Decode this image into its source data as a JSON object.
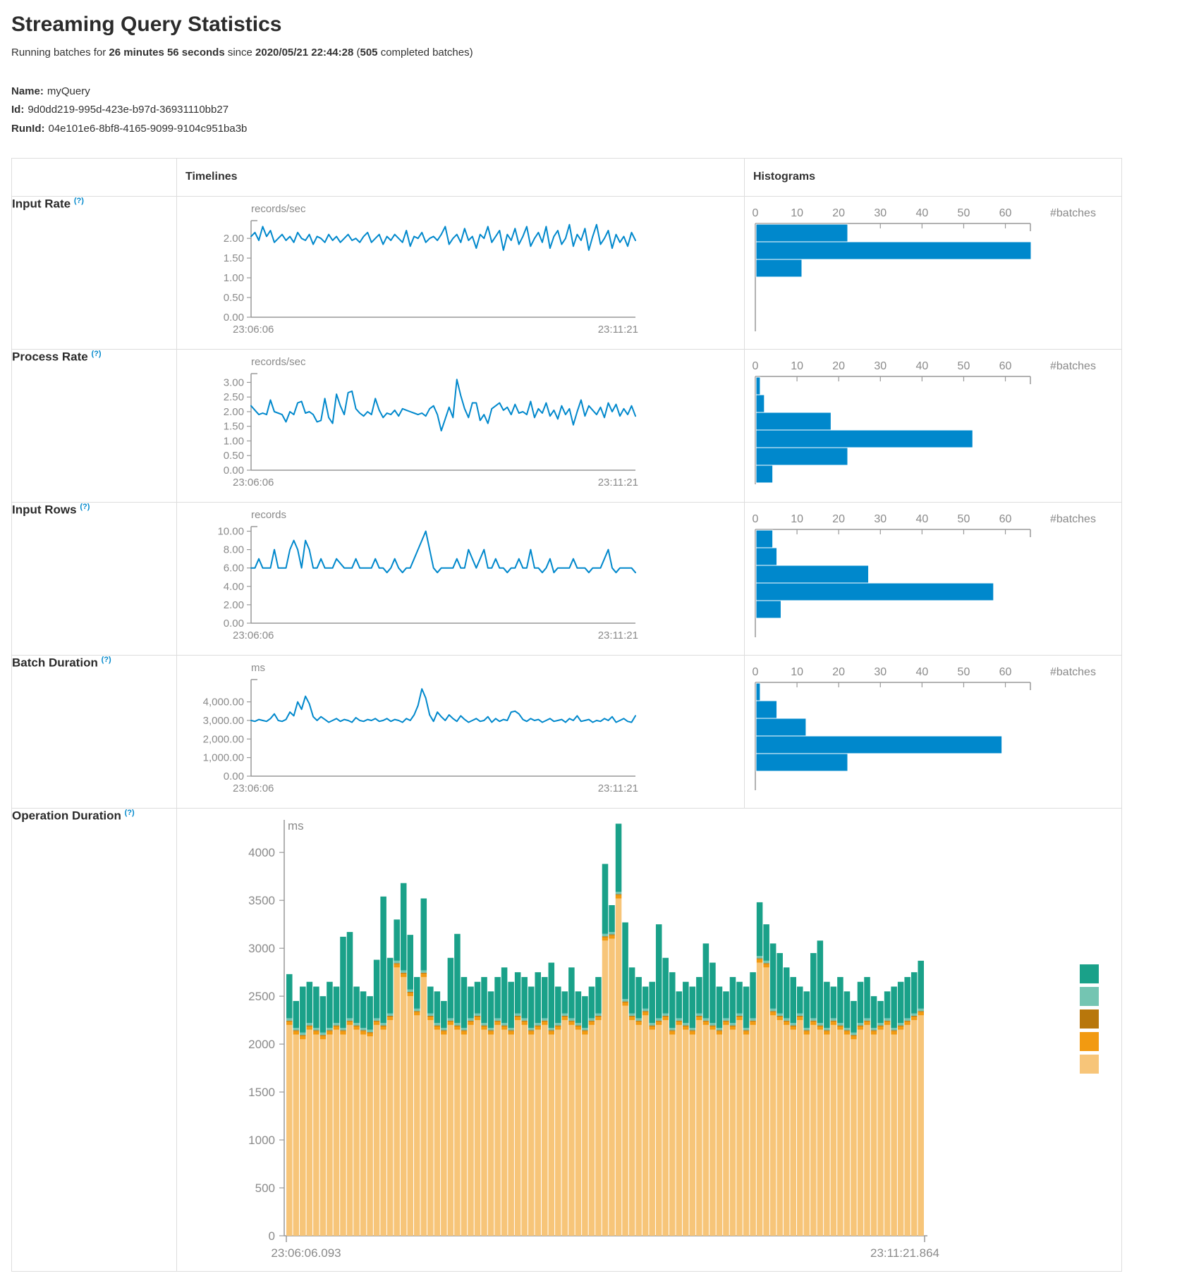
{
  "page": {
    "title": "Streaming Query Statistics",
    "summary": {
      "prefix": "Running batches for ",
      "duration": "26 minutes 56 seconds",
      "since_word": " since ",
      "start_time": "2020/05/21 22:44:28",
      "open_paren": " (",
      "batch_count": "505",
      "suffix": " completed batches)"
    },
    "meta": {
      "name_label": "Name:",
      "name": "myQuery",
      "id_label": "Id:",
      "id": "9d0dd219-995d-423e-b97d-36931110bb27",
      "runid_label": "RunId:",
      "runid": "04e101e6-8bf8-4165-9099-9104c951ba3b"
    }
  },
  "table": {
    "timelines_header": "Timelines",
    "histograms_header": "Histograms",
    "rows": [
      {
        "label": "Input Rate",
        "help": "(?)"
      },
      {
        "label": "Process Rate",
        "help": "(?)"
      },
      {
        "label": "Input Rows",
        "help": "(?)"
      },
      {
        "label": "Batch Duration",
        "help": "(?)"
      },
      {
        "label": "Operation Duration",
        "help": "(?)"
      }
    ]
  },
  "colors": {
    "line_blue": "#0088cc",
    "axis_gray": "#999999",
    "label_gray": "#8a8a8a",
    "teal": "#1aa189",
    "light_teal": "#74c5b2",
    "amber": "#b8770c",
    "orange": "#f29a11",
    "tan": "#f7c579"
  },
  "chart_data": [
    {
      "type": "line",
      "mount": "tl-input-rate",
      "title": "Input Rate timeline",
      "unit": "records/sec",
      "color": "#0088cc",
      "x_start_label": "23:06:06",
      "x_end_label": "23:11:21",
      "ymax": 2.45,
      "yticks": [
        0,
        0.5,
        1,
        1.5,
        2
      ],
      "ytick_labels": [
        "0.00",
        "0.50",
        "1.00",
        "1.50",
        "2.00"
      ],
      "values": [
        2.05,
        2.15,
        1.95,
        2.3,
        2.05,
        2.2,
        1.9,
        2.0,
        2.1,
        1.95,
        2.05,
        1.9,
        2.15,
        2.0,
        1.95,
        2.1,
        1.85,
        2.05,
        2.0,
        1.9,
        2.1,
        1.95,
        2.05,
        1.9,
        2.0,
        2.1,
        1.95,
        2.0,
        1.9,
        2.05,
        2.15,
        1.9,
        2.0,
        2.1,
        1.85,
        2.05,
        1.95,
        2.1,
        2.0,
        1.9,
        2.2,
        1.8,
        2.05,
        2.0,
        2.15,
        1.9,
        2.0,
        2.05,
        1.95,
        2.1,
        2.3,
        1.85,
        2.0,
        2.1,
        1.9,
        2.25,
        1.95,
        2.05,
        1.75,
        2.1,
        2.0,
        2.3,
        1.9,
        2.05,
        2.2,
        1.7,
        2.1,
        1.95,
        2.25,
        1.85,
        2.05,
        2.3,
        1.8,
        2.0,
        2.15,
        1.9,
        2.3,
        1.75,
        2.05,
        2.2,
        1.85,
        2.0,
        2.35,
        1.8,
        2.1,
        1.95,
        2.25,
        1.7,
        2.05,
        2.35,
        1.85,
        2.0,
        2.2,
        1.75,
        2.1,
        1.9,
        2.05,
        1.8,
        2.15,
        1.95
      ]
    },
    {
      "type": "hbar",
      "mount": "hist-input-rate",
      "title": "Input Rate histogram",
      "xlabel": "#batches",
      "color": "#0088cc",
      "xticks": [
        0,
        10,
        20,
        30,
        40,
        50,
        60
      ],
      "xmax": 66,
      "values": [
        22,
        66,
        11
      ]
    },
    {
      "type": "line",
      "mount": "tl-process-rate",
      "title": "Process Rate timeline",
      "unit": "records/sec",
      "color": "#0088cc",
      "x_start_label": "23:06:06",
      "x_end_label": "23:11:21",
      "ymax": 3.3,
      "yticks": [
        0,
        0.5,
        1,
        1.5,
        2,
        2.5,
        3
      ],
      "ytick_labels": [
        "0.00",
        "0.50",
        "1.00",
        "1.50",
        "2.00",
        "2.50",
        "3.00"
      ],
      "values": [
        2.2,
        2.05,
        1.9,
        1.95,
        1.9,
        2.4,
        2.0,
        1.95,
        1.9,
        1.65,
        2.0,
        1.9,
        2.3,
        2.35,
        1.95,
        2.0,
        1.9,
        1.65,
        1.7,
        2.45,
        1.8,
        1.6,
        2.6,
        2.2,
        1.9,
        2.65,
        2.7,
        2.1,
        1.95,
        1.85,
        2.0,
        1.9,
        2.45,
        2.05,
        1.8,
        1.95,
        1.9,
        2.05,
        1.85,
        2.1,
        2.05,
        2.0,
        1.95,
        1.9,
        1.95,
        1.85,
        2.1,
        2.2,
        1.9,
        1.35,
        1.75,
        2.15,
        1.8,
        3.1,
        2.55,
        2.1,
        1.8,
        2.3,
        2.3,
        1.7,
        1.9,
        1.6,
        2.1,
        2.2,
        2.3,
        2.05,
        2.15,
        1.9,
        2.25,
        1.95,
        2.0,
        1.9,
        2.35,
        1.8,
        2.1,
        1.95,
        2.3,
        1.85,
        2.05,
        1.75,
        2.2,
        1.9,
        2.1,
        1.55,
        2.0,
        2.4,
        1.85,
        2.2,
        2.05,
        1.9,
        2.15,
        1.8,
        2.3,
        2.0,
        2.25,
        1.85,
        2.1,
        1.9,
        2.2,
        1.85
      ]
    },
    {
      "type": "hbar",
      "mount": "hist-process-rate",
      "title": "Process Rate histogram",
      "xlabel": "#batches",
      "color": "#0088cc",
      "xticks": [
        0,
        10,
        20,
        30,
        40,
        50,
        60
      ],
      "xmax": 66,
      "values": [
        1,
        2,
        18,
        52,
        22,
        4
      ]
    },
    {
      "type": "line",
      "mount": "tl-input-rows",
      "title": "Input Rows timeline",
      "unit": "records",
      "color": "#0088cc",
      "x_start_label": "23:06:06",
      "x_end_label": "23:11:21",
      "ymax": 10.5,
      "yticks": [
        0,
        2,
        4,
        6,
        8,
        10
      ],
      "ytick_labels": [
        "0.00",
        "2.00",
        "4.00",
        "6.00",
        "8.00",
        "10.00"
      ],
      "values": [
        6,
        6,
        7,
        6,
        6,
        6,
        8,
        6,
        6,
        6,
        8,
        9,
        8,
        6,
        9,
        8,
        6,
        6,
        7,
        6,
        6,
        6,
        7,
        6.5,
        6,
        6,
        6,
        7,
        6,
        6,
        6,
        6,
        7,
        6,
        6,
        5.5,
        6,
        7,
        6,
        5.5,
        6,
        6,
        7,
        8,
        9,
        10,
        8,
        6,
        5.5,
        6,
        6,
        6,
        6,
        7,
        6,
        6,
        8,
        7,
        6,
        7,
        8,
        6,
        6,
        7,
        6,
        6,
        5.5,
        6,
        6,
        7,
        6,
        6,
        8,
        6,
        6,
        5.5,
        6,
        7,
        5.5,
        6,
        6,
        6,
        6,
        7,
        6,
        6,
        6,
        5.5,
        6,
        6,
        6,
        7,
        8,
        6,
        5.5,
        6,
        6,
        6,
        6,
        5.5
      ]
    },
    {
      "type": "hbar",
      "mount": "hist-input-rows",
      "title": "Input Rows histogram",
      "xlabel": "#batches",
      "color": "#0088cc",
      "xticks": [
        0,
        10,
        20,
        30,
        40,
        50,
        60
      ],
      "xmax": 66,
      "values": [
        4,
        5,
        27,
        57,
        6
      ]
    },
    {
      "type": "line",
      "mount": "tl-batch-duration",
      "title": "Batch Duration timeline",
      "unit": "ms",
      "color": "#0088cc",
      "x_start_label": "23:06:06",
      "x_end_label": "23:11:21",
      "ymax": 5200,
      "yticks": [
        0,
        1000,
        2000,
        3000,
        4000
      ],
      "ytick_labels": [
        "0.00",
        "1,000.00",
        "2,000.00",
        "3,000.00",
        "4,000.00"
      ],
      "values": [
        3000,
        2950,
        3050,
        3000,
        2950,
        3100,
        3350,
        3000,
        2950,
        3050,
        3450,
        3250,
        4000,
        3600,
        4300,
        3900,
        3200,
        3000,
        3200,
        3050,
        2900,
        3000,
        3100,
        2950,
        3050,
        3000,
        2900,
        3150,
        3000,
        2950,
        3050,
        3000,
        3100,
        2950,
        3000,
        3100,
        2950,
        3050,
        3000,
        2900,
        3100,
        3000,
        3300,
        3800,
        4700,
        4200,
        3300,
        2950,
        3450,
        3200,
        3000,
        3300,
        3100,
        2950,
        3250,
        3050,
        2900,
        3000,
        3100,
        2950,
        3000,
        3200,
        2900,
        3100,
        2950,
        3050,
        3000,
        3450,
        3500,
        3350,
        3050,
        2950,
        3100,
        3000,
        3050,
        2900,
        3000,
        3100,
        2950,
        3000,
        3050,
        2900,
        3100,
        3000,
        3250,
        2950,
        3000,
        3050,
        2900,
        3000,
        2950,
        3100,
        3000,
        3200,
        2900,
        3000,
        3100,
        2950,
        2900,
        3250
      ]
    },
    {
      "type": "hbar",
      "mount": "hist-batch-duration",
      "title": "Batch Duration histogram",
      "xlabel": "#batches",
      "color": "#0088cc",
      "xticks": [
        0,
        10,
        20,
        30,
        40,
        50,
        60
      ],
      "xmax": 66,
      "values": [
        1,
        5,
        12,
        59,
        22
      ]
    },
    {
      "type": "stacked",
      "mount": "op-duration",
      "title": "Operation Duration",
      "unit": "ms",
      "x_start_label": "23:06:06.093",
      "x_end_label": "23:11:21.864",
      "ymax": 4340,
      "yticks": [
        0,
        500,
        1000,
        1500,
        2000,
        2500,
        3000,
        3500,
        4000
      ],
      "ytick_labels": [
        "0",
        "500",
        "1000",
        "1500",
        "2000",
        "2500",
        "3000",
        "3500",
        "4000"
      ],
      "colors": {
        "teal": "#1aa189",
        "light_teal": "#74c5b2",
        "amber": "#b8770c",
        "orange": "#f29a11",
        "tan": "#f7c579"
      },
      "legend_order": [
        "teal",
        "light_teal",
        "amber",
        "orange",
        "tan"
      ],
      "sliver_orange": 35,
      "sliver_amber": 10,
      "sliver_lightteal": 25,
      "tan_values": [
        2200,
        2100,
        2050,
        2150,
        2100,
        2050,
        2100,
        2150,
        2100,
        2200,
        2150,
        2100,
        2080,
        2200,
        2150,
        2250,
        2800,
        2700,
        2500,
        2300,
        2700,
        2250,
        2150,
        2100,
        2200,
        2150,
        2100,
        2200,
        2250,
        2150,
        2100,
        2200,
        2150,
        2100,
        2250,
        2200,
        2100,
        2150,
        2200,
        2100,
        2150,
        2250,
        2200,
        2150,
        2100,
        2200,
        2250,
        3080,
        3100,
        3520,
        2400,
        2250,
        2200,
        2300,
        2150,
        2200,
        2250,
        2100,
        2200,
        2150,
        2100,
        2250,
        2200,
        2150,
        2100,
        2200,
        2150,
        2250,
        2100,
        2200,
        2850,
        2800,
        2300,
        2250,
        2200,
        2150,
        2250,
        2100,
        2200,
        2150,
        2100,
        2200,
        2150,
        2100,
        2050,
        2150,
        2200,
        2100,
        2150,
        2200,
        2100,
        2150,
        2200,
        2250,
        2300
      ],
      "total_values": [
        2730,
        2450,
        2600,
        2650,
        2600,
        2500,
        2650,
        2600,
        3120,
        3170,
        2600,
        2550,
        2500,
        2880,
        3540,
        2900,
        3300,
        3680,
        3140,
        2700,
        3520,
        2600,
        2550,
        2450,
        2900,
        3150,
        2700,
        2600,
        2650,
        2700,
        2550,
        2700,
        2800,
        2650,
        2750,
        2700,
        2600,
        2750,
        2700,
        2850,
        2600,
        2550,
        2800,
        2550,
        2500,
        2600,
        2700,
        3880,
        3450,
        4300,
        3270,
        2800,
        2700,
        2600,
        2650,
        3250,
        2900,
        2750,
        2550,
        2650,
        2600,
        2700,
        3050,
        2850,
        2600,
        2550,
        2700,
        2650,
        2600,
        2750,
        3480,
        3250,
        3050,
        2950,
        2800,
        2700,
        2600,
        2550,
        2950,
        3080,
        2650,
        2600,
        2700,
        2550,
        2450,
        2650,
        2700,
        2500,
        2450,
        2550,
        2600,
        2650,
        2700,
        2750,
        2870
      ]
    }
  ]
}
